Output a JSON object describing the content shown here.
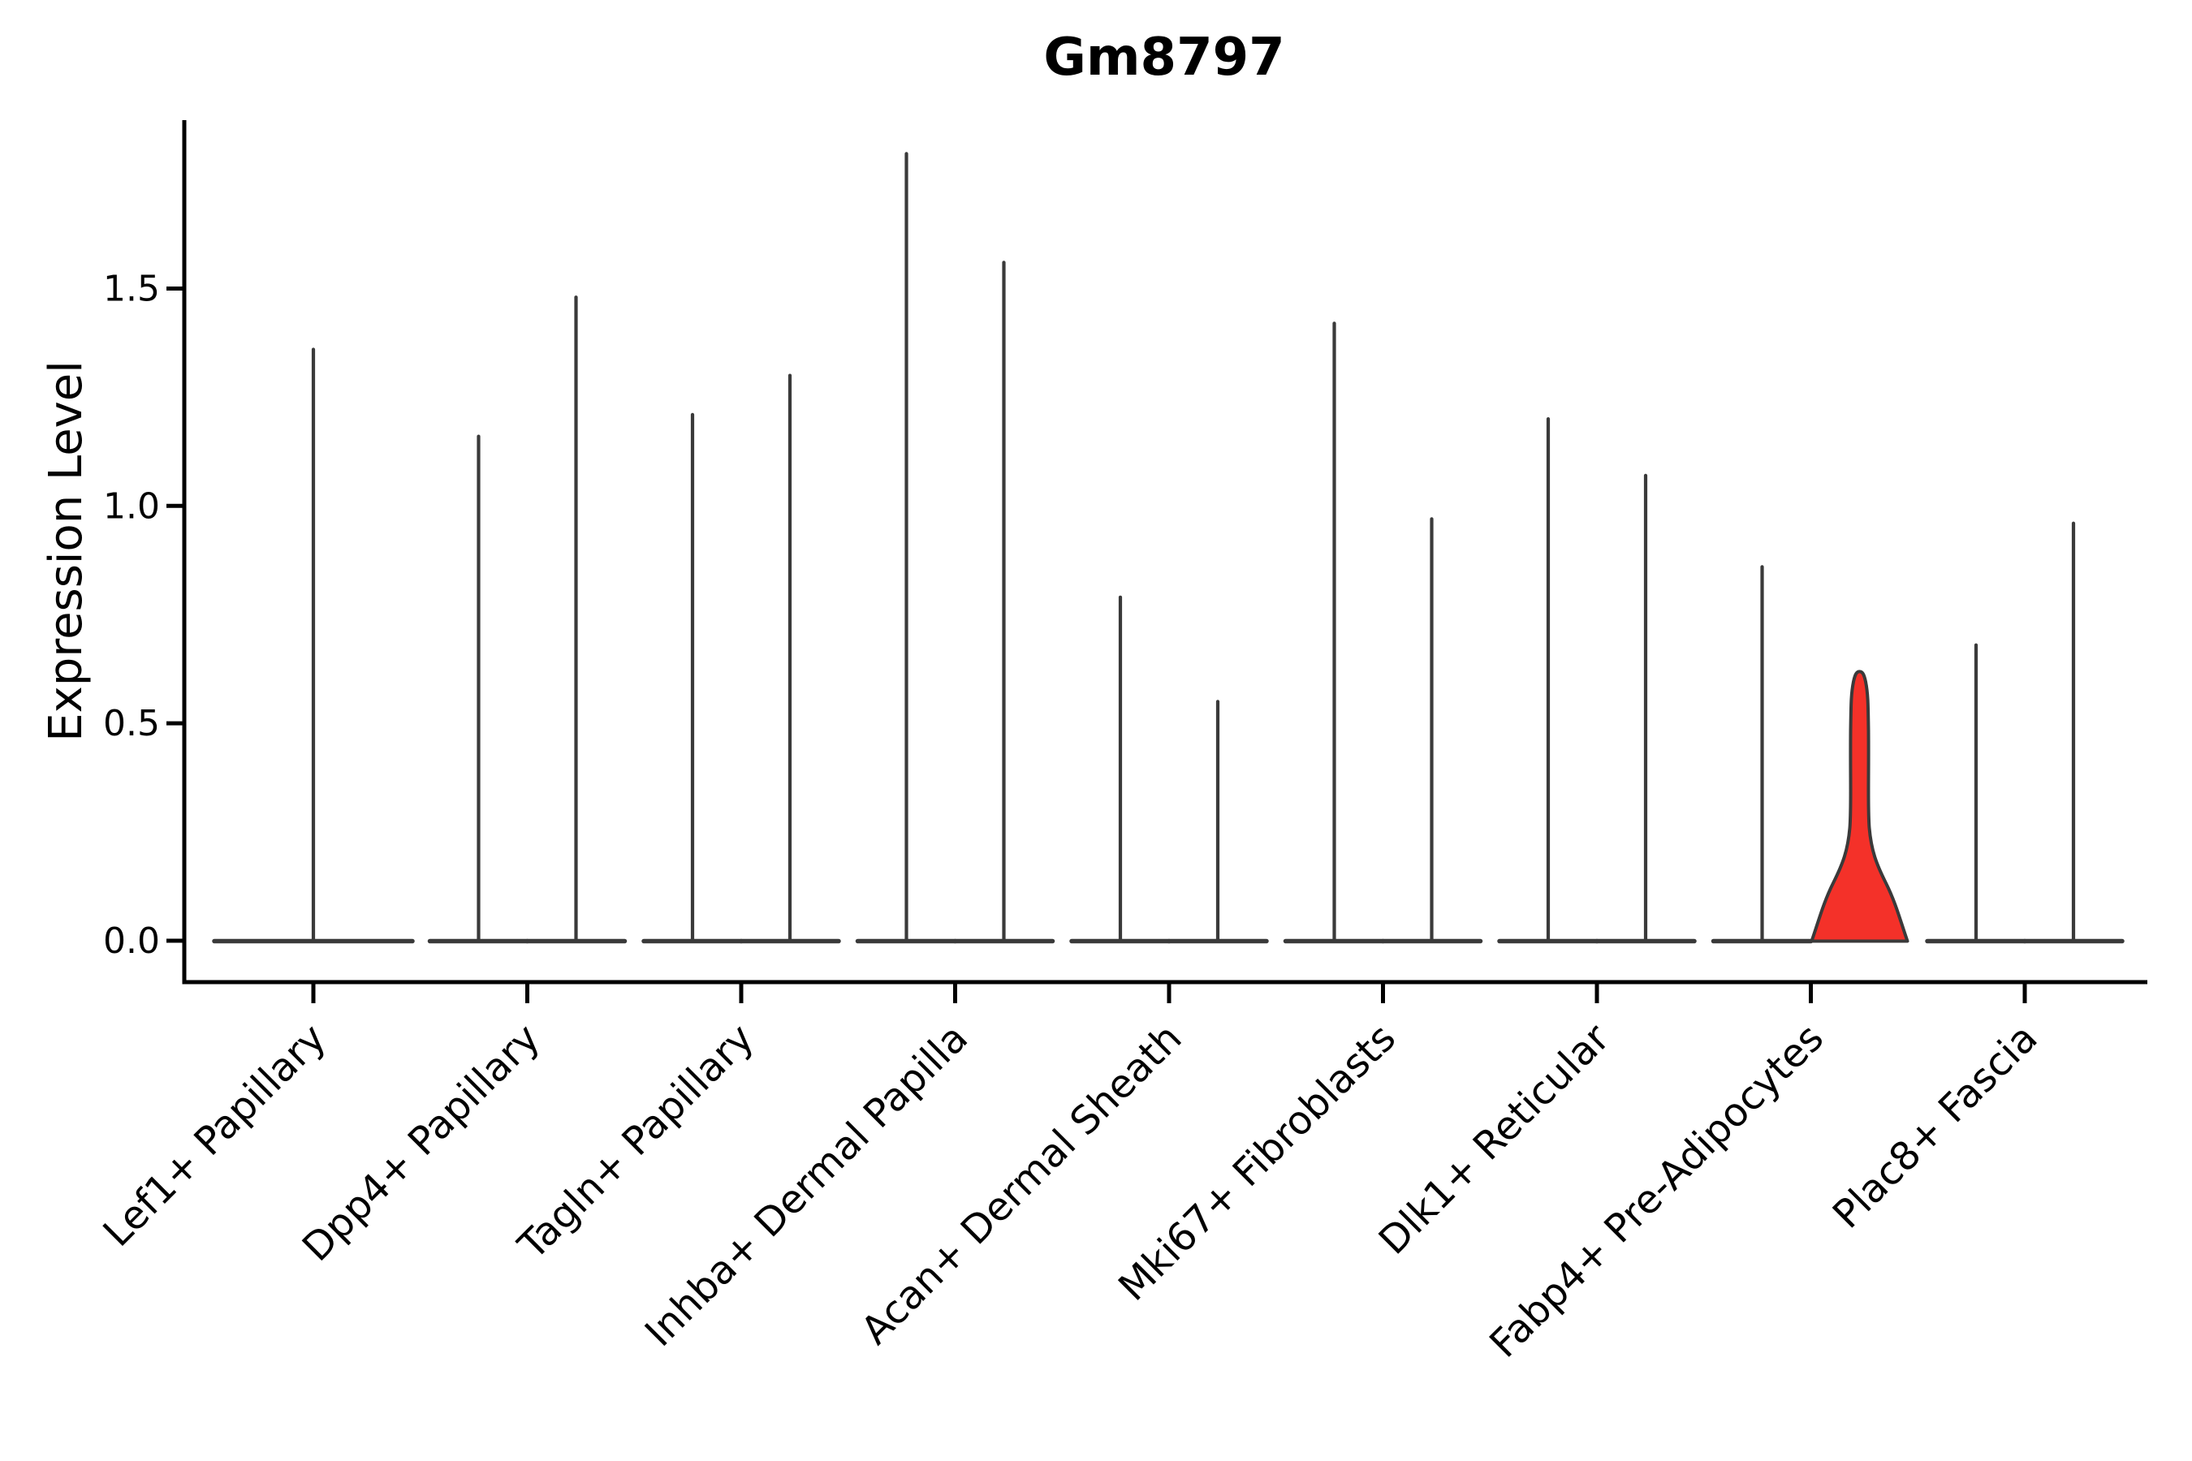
{
  "chart_data": {
    "type": "violin",
    "title": "Gm8797",
    "ylabel": "Expression Level",
    "xlabel": "",
    "grid": false,
    "legend": "none",
    "ylim": [
      -0.095,
      1.887
    ],
    "yticks": [
      "0.0",
      "0.5",
      "1.0",
      "1.5"
    ],
    "ytick_values": [
      0.0,
      0.5,
      1.0,
      1.5
    ],
    "categories": [
      "Lef1+ Papillary",
      "Dpp4+ Papillary",
      "Tagln+ Papillary",
      "Inhba+ Dermal Papilla",
      "Acan+ Dermal Sheath",
      "Mki67+ Fibroblasts",
      "Dlk1+ Reticular",
      "Fabp4+ Pre-Adipocytes",
      "Plac8+ Fascia"
    ],
    "violins": [
      {
        "category": "Lef1+ Papillary",
        "position": "center",
        "max_expression": 1.36,
        "highlighted": false
      },
      {
        "category": "Dpp4+ Papillary",
        "position": "left",
        "max_expression": 1.16,
        "highlighted": false
      },
      {
        "category": "Dpp4+ Papillary",
        "position": "right",
        "max_expression": 1.48,
        "highlighted": false
      },
      {
        "category": "Tagln+ Papillary",
        "position": "left",
        "max_expression": 1.21,
        "highlighted": false
      },
      {
        "category": "Tagln+ Papillary",
        "position": "right",
        "max_expression": 1.3,
        "highlighted": false
      },
      {
        "category": "Inhba+ Dermal Papilla",
        "position": "left",
        "max_expression": 1.81,
        "highlighted": false
      },
      {
        "category": "Inhba+ Dermal Papilla",
        "position": "right",
        "max_expression": 1.56,
        "highlighted": false
      },
      {
        "category": "Acan+ Dermal Sheath",
        "position": "left",
        "max_expression": 0.79,
        "highlighted": false
      },
      {
        "category": "Acan+ Dermal Sheath",
        "position": "right",
        "max_expression": 0.55,
        "highlighted": false
      },
      {
        "category": "Mki67+ Fibroblasts",
        "position": "left",
        "max_expression": 1.42,
        "highlighted": false
      },
      {
        "category": "Mki67+ Fibroblasts",
        "position": "right",
        "max_expression": 0.97,
        "highlighted": false
      },
      {
        "category": "Dlk1+ Reticular",
        "position": "left",
        "max_expression": 1.2,
        "highlighted": false
      },
      {
        "category": "Dlk1+ Reticular",
        "position": "right",
        "max_expression": 1.07,
        "highlighted": false
      },
      {
        "category": "Fabp4+ Pre-Adipocytes",
        "position": "left",
        "max_expression": 0.86,
        "highlighted": false
      },
      {
        "category": "Fabp4+ Pre-Adipocytes",
        "position": "right",
        "max_expression": 0.62,
        "highlighted": true
      },
      {
        "category": "Plac8+ Fascia",
        "position": "left",
        "max_expression": 0.68,
        "highlighted": false
      },
      {
        "category": "Plac8+ Fascia",
        "position": "right",
        "max_expression": 0.96,
        "highlighted": false
      }
    ],
    "colors": {
      "violin_line": "#3a3a3a",
      "highlight_fill": "#f43129",
      "axis": "#000000",
      "background": "#ffffff"
    }
  }
}
